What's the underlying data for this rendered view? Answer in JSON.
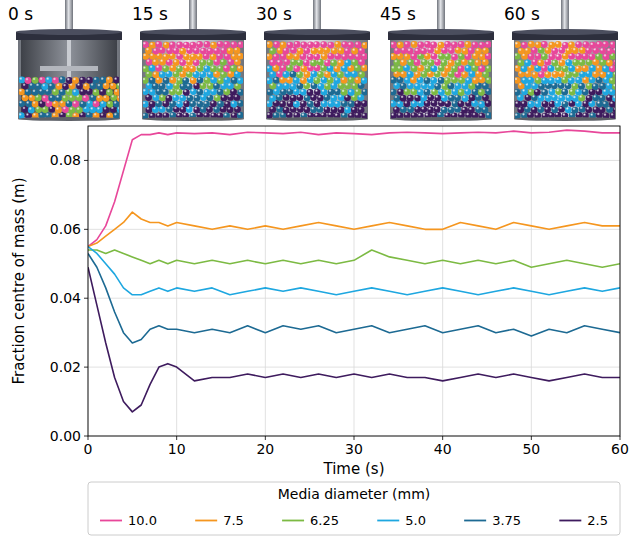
{
  "snapshots": {
    "labels": [
      "0 s",
      "15 s",
      "30 s",
      "45 s",
      "60 s"
    ]
  },
  "chart_data": {
    "type": "line",
    "x_label": "Time (s)",
    "y_label": "Fraction centre of mass (m)",
    "legend_title": "Media diameter (mm)",
    "legend": "bottom",
    "grid": true,
    "xlim": [
      0,
      60
    ],
    "xticks": [
      0,
      10,
      20,
      30,
      40,
      50,
      60
    ],
    "ylim": [
      0,
      0.09
    ],
    "yticks": [
      {
        "value": 0,
        "label": "0.00"
      },
      0.02,
      0.04,
      0.06,
      0.08
    ],
    "x": [
      0,
      1,
      2,
      3,
      4,
      5,
      6,
      7,
      8,
      9,
      10,
      12,
      14,
      16,
      18,
      20,
      22,
      24,
      26,
      28,
      30,
      32,
      34,
      36,
      38,
      40,
      42,
      44,
      46,
      48,
      50,
      52,
      54,
      56,
      58,
      60
    ],
    "series": [
      {
        "name": "10.0",
        "color": "#e8479a",
        "values": [
          0.055,
          0.057,
          0.061,
          0.068,
          0.077,
          0.086,
          0.0875,
          0.0875,
          0.088,
          0.0875,
          0.088,
          0.0878,
          0.088,
          0.0875,
          0.0882,
          0.088,
          0.0878,
          0.0882,
          0.0875,
          0.088,
          0.0878,
          0.0875,
          0.088,
          0.0882,
          0.088,
          0.0878,
          0.088,
          0.0882,
          0.088,
          0.0885,
          0.088,
          0.0882,
          0.0888,
          0.0885,
          0.088,
          0.088
        ]
      },
      {
        "name": "7.5",
        "color": "#f5961f",
        "values": [
          0.055,
          0.056,
          0.058,
          0.06,
          0.062,
          0.065,
          0.063,
          0.062,
          0.062,
          0.061,
          0.062,
          0.061,
          0.06,
          0.061,
          0.06,
          0.061,
          0.06,
          0.061,
          0.062,
          0.061,
          0.06,
          0.061,
          0.062,
          0.061,
          0.06,
          0.06,
          0.062,
          0.061,
          0.06,
          0.062,
          0.061,
          0.06,
          0.061,
          0.062,
          0.061,
          0.061
        ]
      },
      {
        "name": "6.25",
        "color": "#7cba43",
        "values": [
          0.054,
          0.054,
          0.053,
          0.054,
          0.053,
          0.052,
          0.051,
          0.05,
          0.051,
          0.05,
          0.051,
          0.05,
          0.051,
          0.05,
          0.051,
          0.05,
          0.051,
          0.05,
          0.051,
          0.05,
          0.051,
          0.054,
          0.052,
          0.051,
          0.05,
          0.051,
          0.05,
          0.051,
          0.05,
          0.051,
          0.049,
          0.05,
          0.051,
          0.05,
          0.049,
          0.05
        ]
      },
      {
        "name": "5.0",
        "color": "#1ea7e0",
        "values": [
          0.055,
          0.053,
          0.05,
          0.047,
          0.043,
          0.041,
          0.041,
          0.042,
          0.043,
          0.042,
          0.043,
          0.042,
          0.043,
          0.041,
          0.042,
          0.043,
          0.042,
          0.043,
          0.042,
          0.041,
          0.042,
          0.043,
          0.042,
          0.041,
          0.042,
          0.043,
          0.042,
          0.041,
          0.042,
          0.043,
          0.042,
          0.041,
          0.042,
          0.043,
          0.042,
          0.043
        ]
      },
      {
        "name": "3.75",
        "color": "#1d6a93",
        "values": [
          0.053,
          0.049,
          0.043,
          0.036,
          0.03,
          0.027,
          0.028,
          0.031,
          0.032,
          0.031,
          0.031,
          0.03,
          0.031,
          0.03,
          0.032,
          0.03,
          0.032,
          0.031,
          0.032,
          0.03,
          0.031,
          0.032,
          0.03,
          0.031,
          0.032,
          0.03,
          0.031,
          0.032,
          0.03,
          0.031,
          0.029,
          0.031,
          0.03,
          0.032,
          0.031,
          0.03
        ]
      },
      {
        "name": "2.5",
        "color": "#3e1b5e",
        "values": [
          0.049,
          0.038,
          0.027,
          0.017,
          0.01,
          0.007,
          0.009,
          0.015,
          0.02,
          0.021,
          0.02,
          0.016,
          0.017,
          0.017,
          0.018,
          0.017,
          0.018,
          0.017,
          0.018,
          0.017,
          0.018,
          0.017,
          0.018,
          0.017,
          0.017,
          0.016,
          0.017,
          0.018,
          0.017,
          0.018,
          0.017,
          0.016,
          0.017,
          0.018,
          0.017,
          0.017
        ]
      }
    ]
  }
}
